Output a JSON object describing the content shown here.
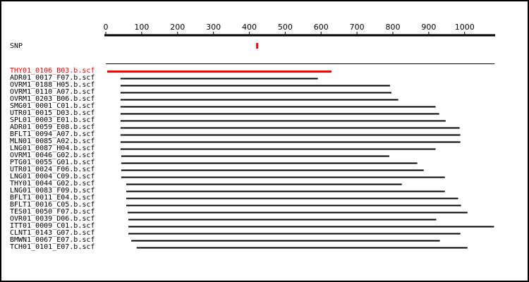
{
  "chart_data": {
    "type": "alignment",
    "xlim": [
      0,
      1085
    ],
    "xticks": [
      0,
      100,
      200,
      300,
      400,
      500,
      600,
      700,
      800,
      900,
      1000
    ],
    "snp": {
      "label": "SNP",
      "position": 422,
      "color": "#ff0000"
    },
    "series": [
      {
        "name": "THY01_0106_B03.b.scf",
        "start": 4,
        "end": 629,
        "color": "#ff0000"
      },
      {
        "name": "ADR01_0017_F07.b.scf",
        "start": 41,
        "end": 591,
        "color": "#000000"
      },
      {
        "name": "OVRM1_0188_H05.b.scf",
        "start": 41,
        "end": 792,
        "color": "#000000"
      },
      {
        "name": "OVRM1_0110_A07.b.scf",
        "start": 41,
        "end": 796,
        "color": "#000000"
      },
      {
        "name": "OVRM1_0203_B06.b.scf",
        "start": 41,
        "end": 815,
        "color": "#000000"
      },
      {
        "name": "SMG01_0001_C01.b.scf",
        "start": 41,
        "end": 919,
        "color": "#000000"
      },
      {
        "name": "UTR01_0015_D03.b.scf",
        "start": 41,
        "end": 929,
        "color": "#000000"
      },
      {
        "name": "SPL01_0003_E01.b.scf",
        "start": 41,
        "end": 947,
        "color": "#000000"
      },
      {
        "name": "ADR01_0059_E08.b.scf",
        "start": 41,
        "end": 986,
        "color": "#000000"
      },
      {
        "name": "BFLT1_0094_A07.b.scf",
        "start": 41,
        "end": 988,
        "color": "#000000"
      },
      {
        "name": "MLN01_0085_A02.b.scf",
        "start": 41,
        "end": 988,
        "color": "#000000"
      },
      {
        "name": "LNG01_0087_H04.b.scf",
        "start": 41,
        "end": 919,
        "color": "#000000"
      },
      {
        "name": "OVRM1_0046_G02.b.scf",
        "start": 43,
        "end": 790,
        "color": "#000000"
      },
      {
        "name": "PTG01_0055_G01.b.scf",
        "start": 43,
        "end": 868,
        "color": "#000000"
      },
      {
        "name": "UTR01_0024_F06.b.scf",
        "start": 43,
        "end": 886,
        "color": "#000000"
      },
      {
        "name": "LNG01_0004_C09.b.scf",
        "start": 43,
        "end": 945,
        "color": "#000000"
      },
      {
        "name": "THY01_0044_G02.b.scf",
        "start": 57,
        "end": 825,
        "color": "#000000"
      },
      {
        "name": "LNG01_0083_F09.b.scf",
        "start": 57,
        "end": 945,
        "color": "#000000"
      },
      {
        "name": "BFLT1_0011_E04.b.scf",
        "start": 57,
        "end": 982,
        "color": "#000000"
      },
      {
        "name": "BFLT1_0016_C05.b.scf",
        "start": 57,
        "end": 990,
        "color": "#000000"
      },
      {
        "name": "TES01_0050_F07.b.scf",
        "start": 61,
        "end": 1008,
        "color": "#000000"
      },
      {
        "name": "OVR01_0039_D06.b.scf",
        "start": 63,
        "end": 921,
        "color": "#000000"
      },
      {
        "name": "ITT01_0009_C01.b.scf",
        "start": 63,
        "end": 1082,
        "color": "#000000"
      },
      {
        "name": "CLNT1_0143_G07.b.scf",
        "start": 63,
        "end": 988,
        "color": "#000000"
      },
      {
        "name": "BMWN1_0067_E07.b.scf",
        "start": 71,
        "end": 931,
        "color": "#000000"
      },
      {
        "name": "TCH01_0101_E07.b.scf",
        "start": 86,
        "end": 1008,
        "color": "#000000"
      }
    ]
  }
}
